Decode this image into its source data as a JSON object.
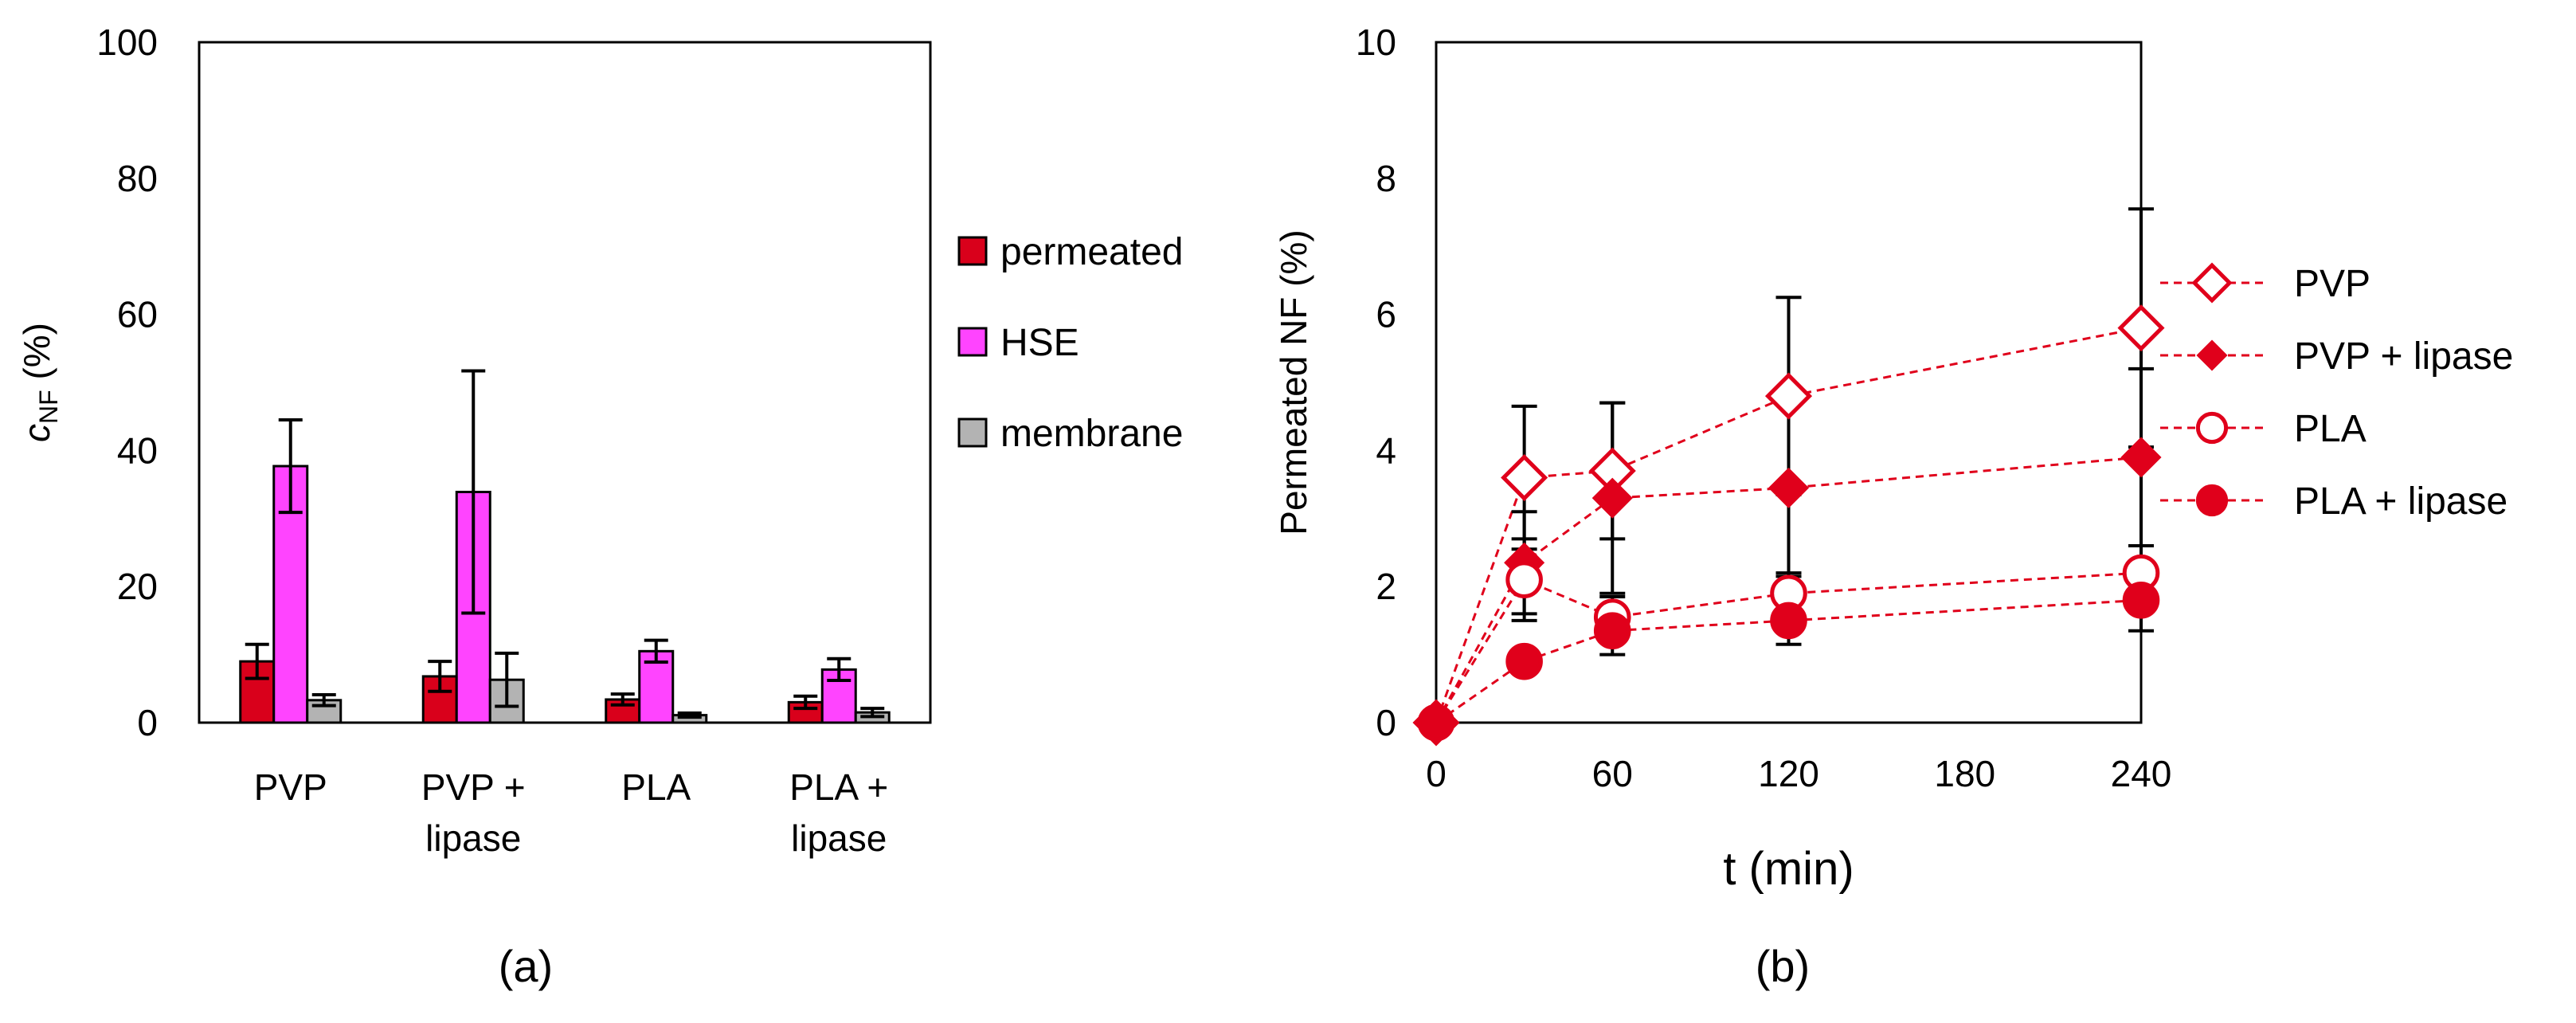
{
  "chart_data": [
    {
      "type": "bar",
      "panel_label": "(a)",
      "ylabel_main": "c",
      "ylabel_sub": "NF",
      "ylabel_unit": " (%)",
      "ylim": [
        0,
        100
      ],
      "yticks": [
        0,
        20,
        40,
        60,
        80,
        100
      ],
      "category_lines": [
        [
          "PVP"
        ],
        [
          "PVP +",
          "lipase"
        ],
        [
          "PLA"
        ],
        [
          "PLA +",
          "lipase"
        ]
      ],
      "legend_position": "right",
      "series": [
        {
          "name": "permeated",
          "color": "#d9001b",
          "values": [
            9.0,
            6.8,
            3.4,
            3.0
          ],
          "errors": [
            2.5,
            2.2,
            0.8,
            0.9
          ]
        },
        {
          "name": "HSE",
          "color": "#ff44ff",
          "values": [
            37.7,
            33.9,
            10.5,
            7.8
          ],
          "errors": [
            6.8,
            17.8,
            1.6,
            1.6
          ]
        },
        {
          "name": "membrane",
          "color": "#b3b3b3",
          "values": [
            3.3,
            6.3,
            1.1,
            1.5
          ],
          "errors": [
            0.8,
            3.9,
            0.3,
            0.6
          ]
        }
      ]
    },
    {
      "type": "line",
      "panel_label": "(b)",
      "xlabel": "t (min)",
      "ylabel": "Permeated NF (%)",
      "xticks": [
        0,
        60,
        120,
        180,
        240
      ],
      "yticks": [
        0,
        2,
        4,
        6,
        8,
        10
      ],
      "xlim": [
        0,
        240
      ],
      "ylim": [
        0,
        10
      ],
      "legend_position": "right",
      "grid": false,
      "series": [
        {
          "name": "PVP",
          "marker": "diamond-open",
          "color": "#e0001b",
          "x": [
            0,
            30,
            60,
            120,
            240
          ],
          "y": [
            0,
            3.6,
            3.7,
            4.8,
            5.8
          ],
          "errors": [
            0,
            1.05,
            1.0,
            1.45,
            1.75
          ]
        },
        {
          "name": "PVP + lipase",
          "marker": "diamond-filled",
          "color": "#e0001b",
          "x": [
            0,
            30,
            60,
            120,
            240
          ],
          "y": [
            0,
            2.35,
            3.3,
            3.45,
            3.9
          ],
          "errors": [
            0,
            0.75,
            1.4,
            1.3,
            1.3
          ]
        },
        {
          "name": "PLA",
          "marker": "circle-open",
          "color": "#e0001b",
          "x": [
            0,
            30,
            60,
            120,
            240
          ],
          "y": [
            0,
            2.1,
            1.55,
            1.9,
            2.2
          ],
          "errors": [
            0,
            0.6,
            0.3,
            0.3,
            0.4
          ]
        },
        {
          "name": "PLA + lipase",
          "marker": "circle-filled",
          "color": "#e0001b",
          "x": [
            0,
            30,
            60,
            120,
            240
          ],
          "y": [
            0,
            0.9,
            1.35,
            1.5,
            1.8
          ],
          "errors": [
            0,
            0.1,
            0.35,
            0.35,
            0.45
          ]
        }
      ]
    }
  ]
}
